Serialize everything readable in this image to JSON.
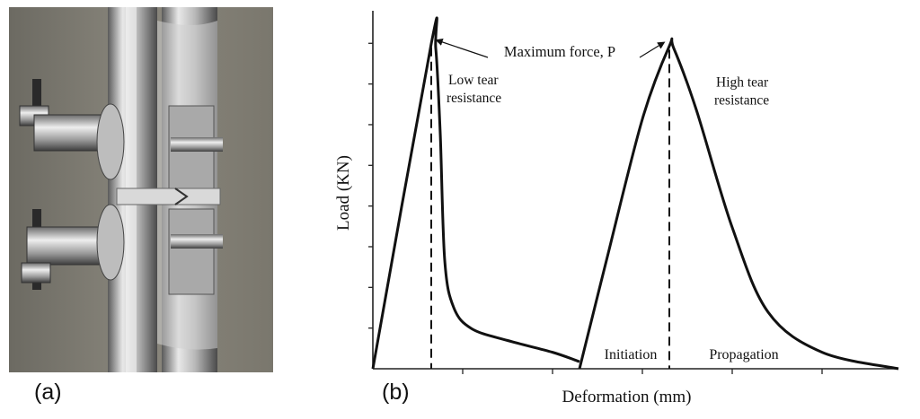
{
  "panels": {
    "a": "(a)",
    "b": "(b)"
  },
  "photo": {
    "subject": "tear test specimen in tensile grips"
  },
  "chart_data": {
    "type": "line",
    "xlabel": "Deformation (mm)",
    "ylabel": "Load (KN)",
    "x_ticks_labeled": false,
    "y_ticks_labeled": false,
    "series": [
      {
        "x": [
          0,
          0.65,
          0.7,
          0.75,
          0.8,
          0.9,
          1.1,
          1.5,
          2.0,
          2.3
        ],
        "y": [
          0,
          6.9,
          6.8,
          5.0,
          2.3,
          1.3,
          0.85,
          0.6,
          0.35,
          0.15
        ],
        "peak_label": [
          "Low tear",
          "resistance"
        ]
      },
      {
        "x": [
          2.3,
          2.6,
          3.0,
          3.3,
          3.35,
          3.6,
          4.0,
          4.4,
          5.0,
          5.85
        ],
        "y": [
          0,
          2.3,
          5.3,
          6.85,
          6.8,
          5.5,
          3.0,
          1.2,
          0.35,
          0
        ],
        "peak_label": [
          "High tear",
          "resistance"
        ]
      }
    ],
    "annotations": {
      "max_force": "Maximum force, P",
      "initiation": "Initiation",
      "propagation": "Propagation"
    }
  }
}
